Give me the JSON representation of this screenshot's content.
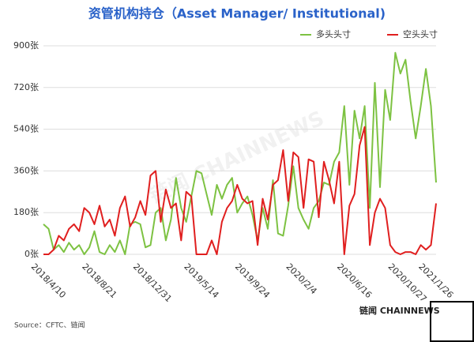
{
  "chart_data": {
    "type": "line",
    "title": "资管机构持仓（Asset Manager/ Institutional)",
    "source": "Source：CFTC、链闻",
    "watermark": "链闻 CHAINNEWS",
    "logo": "链闻 CHAINNEWS",
    "categories": [
      "2018/4/10",
      null,
      null,
      null,
      null,
      null,
      null,
      null,
      null,
      null,
      "2018/8/21",
      null,
      null,
      null,
      null,
      null,
      null,
      null,
      null,
      null,
      "2018/12/31",
      null,
      null,
      null,
      null,
      null,
      null,
      null,
      null,
      null,
      "2019/5/14",
      null,
      null,
      null,
      null,
      null,
      null,
      null,
      null,
      null,
      "2019/9/24",
      null,
      null,
      null,
      null,
      null,
      null,
      null,
      null,
      null,
      "2020/2/4",
      null,
      null,
      null,
      null,
      null,
      null,
      null,
      null,
      null,
      "2020/6/16",
      null,
      null,
      null,
      null,
      null,
      null,
      null,
      null,
      null,
      "2020/10/27",
      null,
      null,
      null,
      null,
      null,
      "2021/1/26",
      null
    ],
    "series": [
      {
        "name": "多头头寸",
        "color": "#7dc242",
        "values": [
          130,
          110,
          20,
          40,
          10,
          50,
          20,
          40,
          0,
          30,
          100,
          10,
          0,
          40,
          10,
          60,
          0,
          130,
          140,
          130,
          30,
          40,
          180,
          200,
          60,
          150,
          330,
          200,
          140,
          250,
          360,
          350,
          260,
          170,
          300,
          240,
          300,
          330,
          180,
          220,
          250,
          170,
          60,
          200,
          110,
          320,
          90,
          80,
          210,
          380,
          200,
          150,
          110,
          200,
          230,
          310,
          300,
          400,
          440,
          640,
          300,
          620,
          500,
          640,
          200,
          740,
          290,
          710,
          580,
          870,
          780,
          840,
          660,
          500,
          640,
          800,
          640,
          310
        ]
      },
      {
        "name": "空头头寸",
        "color": "#e01f1f",
        "values": [
          0,
          0,
          20,
          80,
          60,
          110,
          130,
          100,
          200,
          180,
          130,
          210,
          120,
          150,
          80,
          200,
          250,
          120,
          160,
          230,
          170,
          340,
          360,
          140,
          280,
          200,
          220,
          60,
          270,
          250,
          0,
          0,
          0,
          60,
          0,
          140,
          200,
          230,
          300,
          240,
          220,
          230,
          40,
          240,
          150,
          300,
          320,
          450,
          230,
          440,
          420,
          200,
          410,
          400,
          160,
          400,
          320,
          220,
          400,
          0,
          210,
          260,
          470,
          550,
          40,
          180,
          240,
          200,
          40,
          10,
          0,
          10,
          10,
          0,
          40,
          20,
          40,
          220
        ]
      }
    ],
    "ylim": [
      0,
      900
    ],
    "yticks": [
      {
        "value": 0,
        "label": "0张"
      },
      {
        "value": 180,
        "label": "180张"
      },
      {
        "value": 360,
        "label": "360张"
      },
      {
        "value": 540,
        "label": "540张"
      },
      {
        "value": 720,
        "label": "720张"
      },
      {
        "value": 900,
        "label": "900张"
      }
    ],
    "grid": true,
    "legend": "top-right"
  }
}
